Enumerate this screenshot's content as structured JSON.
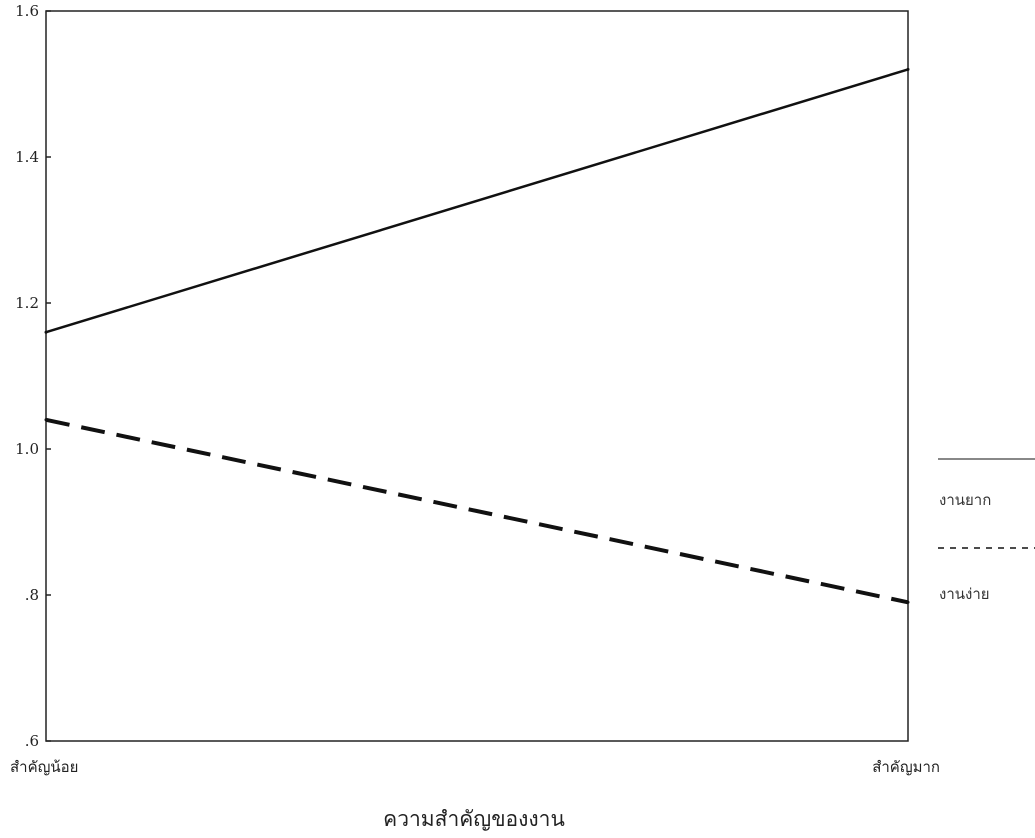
{
  "chart_data": {
    "type": "line",
    "categories": [
      "สำคัญน้อย",
      "สำคัญมาก"
    ],
    "xlabel": "ความสำคัญของงาน",
    "ylabel": "",
    "ylim": [
      0.6,
      1.6
    ],
    "yticks": [
      {
        "value": 0.6,
        "label": ".6"
      },
      {
        "value": 0.8,
        "label": ".8"
      },
      {
        "value": 1.0,
        "label": "1.0"
      },
      {
        "value": 1.2,
        "label": "1.2"
      },
      {
        "value": 1.4,
        "label": "1.4"
      },
      {
        "value": 1.6,
        "label": "1.6"
      }
    ],
    "series": [
      {
        "name": "งานยาก",
        "values": [
          1.16,
          1.52
        ],
        "style": "solid",
        "color": "#111111"
      },
      {
        "name": "งานง่าย",
        "values": [
          1.04,
          0.79
        ],
        "style": "dashed",
        "color": "#111111"
      }
    ],
    "grid": false,
    "legend_position": "right"
  }
}
